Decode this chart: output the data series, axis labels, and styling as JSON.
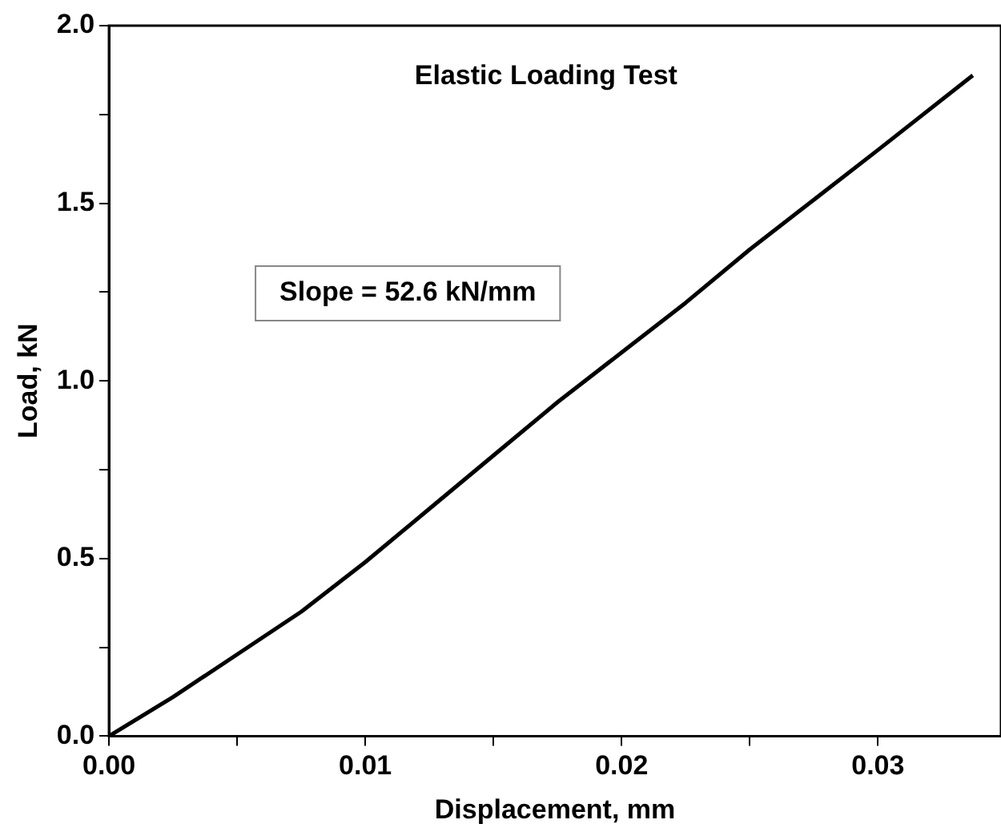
{
  "chart_data": {
    "type": "line",
    "title": "Elastic Loading Test",
    "xlabel": "Displacement, mm",
    "ylabel": "Load, kN",
    "annotations": [
      "Slope = 52.6 kN/mm"
    ],
    "x": [
      0,
      0.0025,
      0.005,
      0.0075,
      0.01,
      0.0125,
      0.015,
      0.0175,
      0.02,
      0.0225,
      0.025,
      0.0275,
      0.03,
      0.0337
    ],
    "series": [
      {
        "color": "#000000",
        "values": [
          0,
          0.11,
          0.23,
          0.35,
          0.49,
          0.64,
          0.79,
          0.94,
          1.08,
          1.22,
          1.37,
          1.51,
          1.65,
          1.86
        ]
      }
    ],
    "xlim": [
      0,
      0.0348
    ],
    "ylim": [
      0,
      2.0
    ],
    "xticks": [
      {
        "value": 0,
        "label": "0.00"
      },
      {
        "value": 0.005,
        "label": null
      },
      {
        "value": 0.01,
        "label": "0.01"
      },
      {
        "value": 0.015,
        "label": null
      },
      {
        "value": 0.02,
        "label": "0.02"
      },
      {
        "value": 0.025,
        "label": null
      },
      {
        "value": 0.03,
        "label": "0.03"
      }
    ],
    "yticks": [
      {
        "value": 0,
        "label": "0.0"
      },
      {
        "value": 0.25,
        "label": null
      },
      {
        "value": 0.5,
        "label": "0.5"
      },
      {
        "value": 0.75,
        "label": null
      },
      {
        "value": 1,
        "label": "1.0"
      },
      {
        "value": 1.25,
        "label": null
      },
      {
        "value": 1.5,
        "label": "1.5"
      },
      {
        "value": 1.75,
        "label": null
      },
      {
        "value": 2,
        "label": "2.0"
      }
    ],
    "grid": false,
    "legend": false,
    "marker": "none",
    "line_style": "solid"
  }
}
